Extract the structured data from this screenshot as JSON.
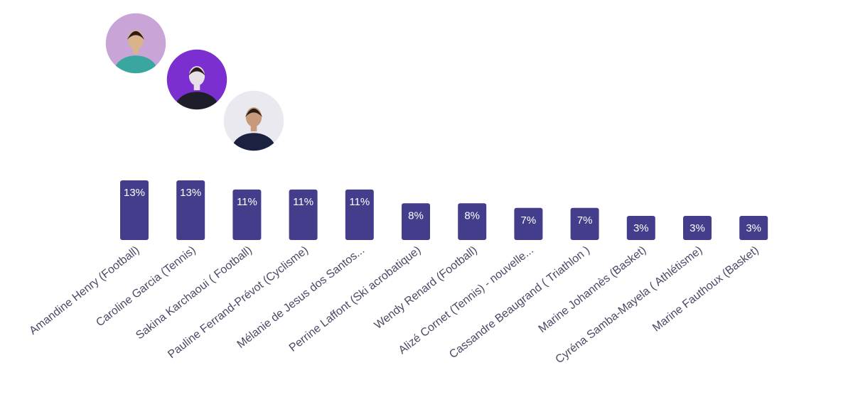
{
  "chart_data": {
    "type": "bar",
    "categories": [
      "Amandine Henry (Football)",
      "Caroline Garcia (Tennis)",
      "Sakina Karchaoui ( Football)",
      "Pauline Ferrand-Prévot (Cyclisme)",
      "Mélanie de Jesus dos Santos...",
      "Perrine Laffont (Ski acrobatique)",
      "Wendy Renard (Football)",
      "Alizé Cornet (Tennis) - nouvelle...",
      "Cassandre Beaugrand ( Triathlon )",
      "Marine Johannès (Basket)",
      "Cyréna Samba-Mayela ( Athlétisme)",
      "Marine Fauthoux (Basket)"
    ],
    "values": [
      13,
      13,
      11,
      11,
      11,
      8,
      8,
      7,
      7,
      3,
      3,
      3
    ],
    "value_labels": [
      "13%",
      "13%",
      "11%",
      "11%",
      "11%",
      "8%",
      "8%",
      "7%",
      "7%",
      "3%",
      "3%",
      "3%"
    ],
    "unit": "%",
    "ylim": [
      0,
      13
    ],
    "grid": false,
    "title": "",
    "xlabel": "",
    "ylabel": "",
    "colors": {
      "bar": "#433d8b",
      "value_label": "#ffffff",
      "category_label": "#4a4a66",
      "photo_ring": "#ffffff"
    },
    "photos": [
      {
        "name": "Amandine Henry",
        "icon": "player-portrait",
        "colors": [
          "#c9a4d6",
          "#d9b38c",
          "#3aa6a0"
        ]
      },
      {
        "name": "Caroline Garcia",
        "icon": "player-portrait",
        "colors": [
          "#7b2fd0",
          "#e8e0e8",
          "#1e1e2a"
        ]
      },
      {
        "name": "Sakina Karchaoui",
        "icon": "player-portrait",
        "colors": [
          "#e9e9ef",
          "#c79a7c",
          "#1b2140"
        ]
      }
    ]
  }
}
